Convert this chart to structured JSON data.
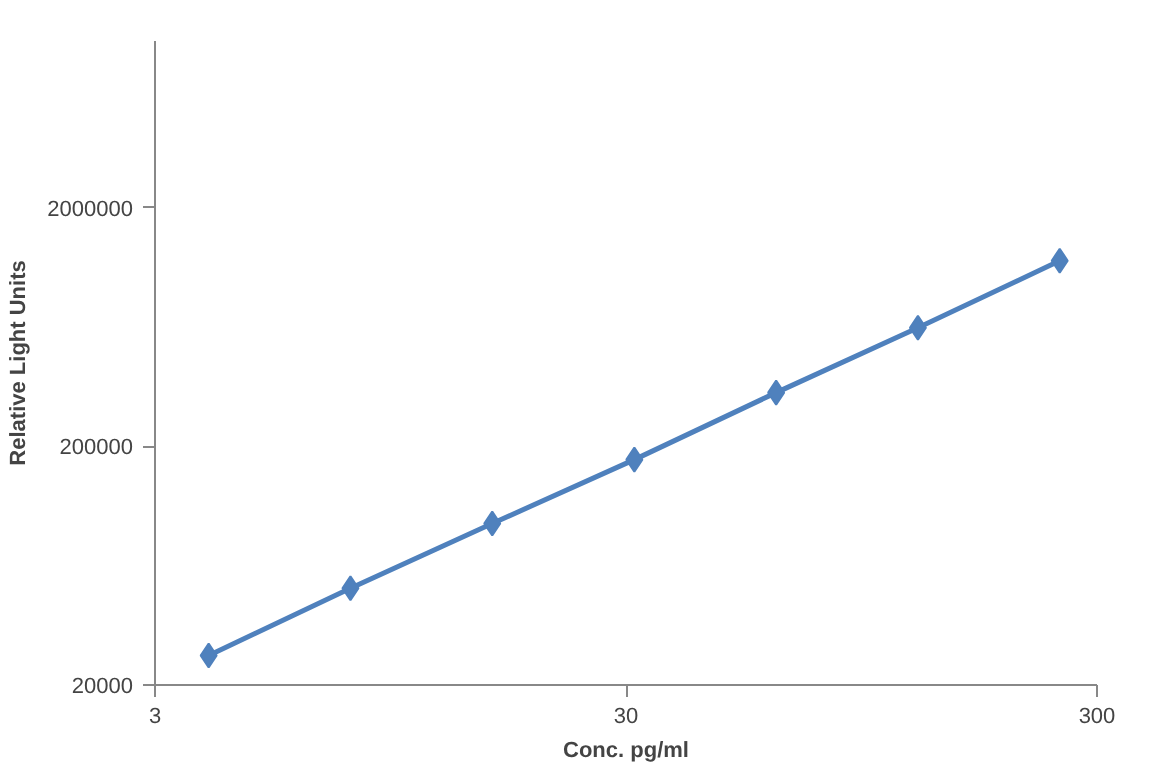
{
  "chart_data": {
    "type": "line",
    "xlabel": "Conc. pg/ml",
    "ylabel": "Relative Light Units",
    "log": "xy",
    "grid": false,
    "marker": "diamond",
    "line_style": "solid",
    "x": [
      3.9,
      7.8,
      15.6,
      31.25,
      62.5,
      125,
      250
    ],
    "series": [
      {
        "color": "#4f81bd",
        "values": [
          26600,
          50900,
          95000,
          176000,
          336000,
          628000,
          1200000
        ]
      }
    ],
    "xlim": [
      3,
      300
    ],
    "xticks": [
      3,
      30,
      300
    ],
    "ylim": [
      20000,
      10000000
    ],
    "yticks": [
      20000,
      200000,
      2000000
    ]
  }
}
